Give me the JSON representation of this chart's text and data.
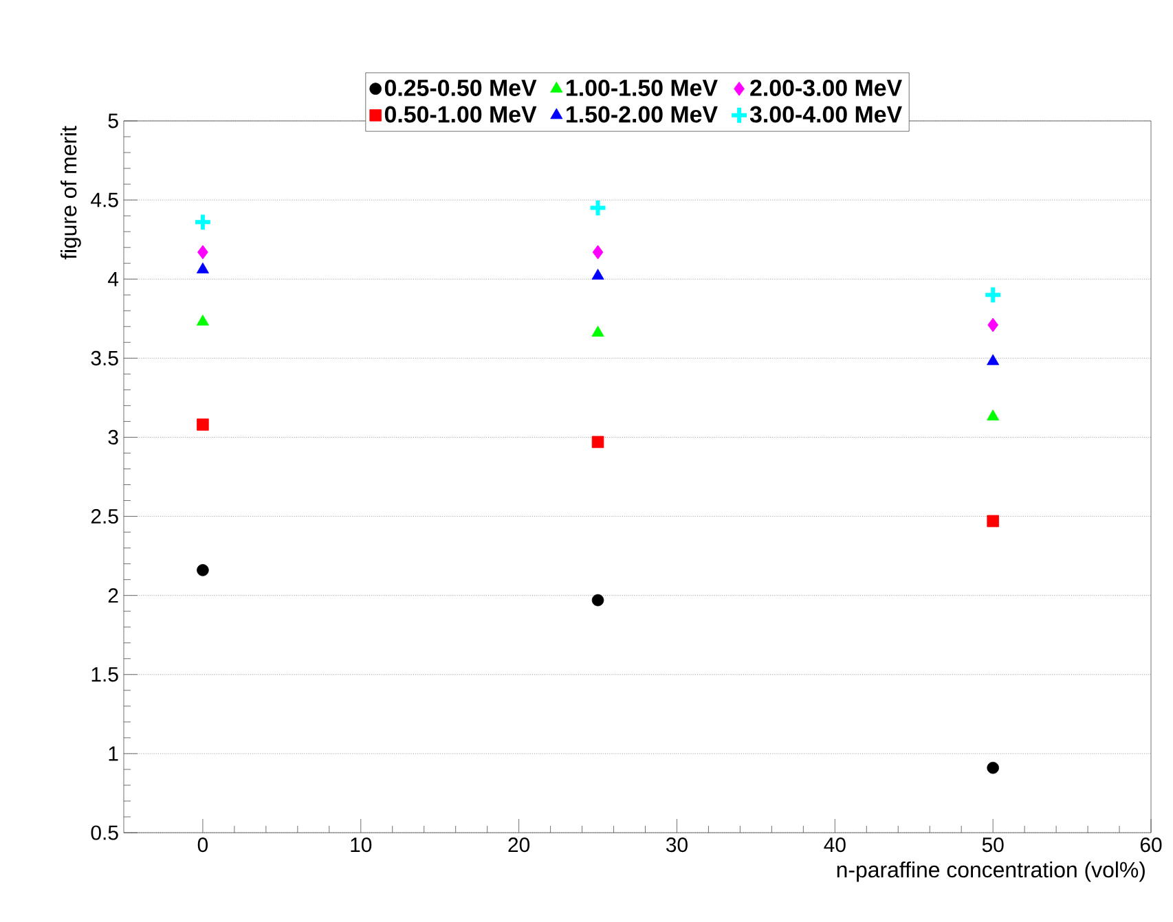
{
  "chart_data": {
    "type": "scatter",
    "xlabel": "n-paraffine concentration (vol%)",
    "ylabel": "figure of merit",
    "x": [
      0,
      25,
      50
    ],
    "series": [
      {
        "name": "0.25-0.50 MeV",
        "color": "#000000",
        "marker": "circle",
        "values": [
          2.16,
          1.97,
          0.91
        ]
      },
      {
        "name": "0.50-1.00 MeV",
        "color": "#ff0000",
        "marker": "square",
        "values": [
          3.08,
          2.97,
          2.47
        ]
      },
      {
        "name": "1.00-1.50 MeV",
        "color": "#00ff00",
        "marker": "triangle",
        "values": [
          3.73,
          3.66,
          3.13
        ]
      },
      {
        "name": "1.50-2.00 MeV",
        "color": "#0000ff",
        "marker": "triangle",
        "values": [
          4.06,
          4.02,
          3.48
        ]
      },
      {
        "name": "2.00-3.00 MeV",
        "color": "#ff00ff",
        "marker": "diamond",
        "values": [
          4.17,
          4.17,
          3.71
        ]
      },
      {
        "name": "3.00-4.00 MeV",
        "color": "#00ffff",
        "marker": "cross",
        "values": [
          4.36,
          4.45,
          3.9
        ]
      }
    ],
    "xlim": [
      -5,
      60
    ],
    "ylim": [
      0.5,
      5
    ],
    "xticks": [
      0,
      10,
      20,
      30,
      40,
      50,
      60
    ],
    "yticks": [
      0.5,
      1,
      1.5,
      2,
      2.5,
      3,
      3.5,
      4,
      4.5,
      5
    ],
    "grid": "y",
    "legend": "top"
  }
}
